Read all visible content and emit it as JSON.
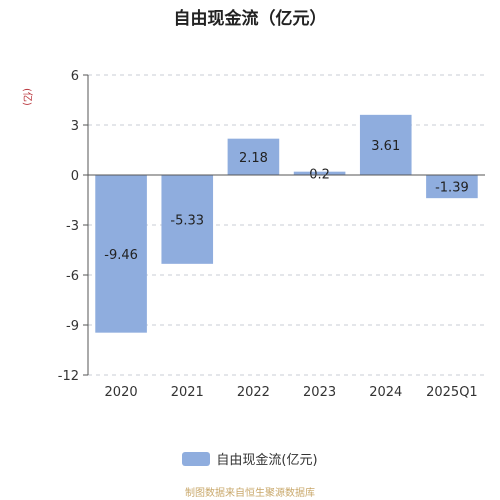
{
  "chart_data": {
    "type": "bar",
    "title": "自由现金流（亿元）",
    "unit_label": "(亿)",
    "categories": [
      "2020",
      "2021",
      "2022",
      "2023",
      "2024",
      "2025Q1"
    ],
    "series": [
      {
        "name": "自由现金流(亿元)",
        "values": [
          -9.46,
          -5.33,
          2.18,
          0.2,
          3.61,
          -1.39
        ]
      }
    ],
    "data_labels": [
      "-9.46",
      "-5.33",
      "2.18",
      "0.2",
      "3.61",
      "-1.39"
    ],
    "yticks": [
      6,
      3,
      0,
      -3,
      -6,
      -9,
      -12
    ],
    "ylim": [
      -12,
      6
    ],
    "grid": true,
    "legend_position": "bottom",
    "bar_color": "#8fadde"
  },
  "legend": {
    "label": "自由现金流(亿元)"
  },
  "source": "制图数据来自恒生聚源数据库"
}
